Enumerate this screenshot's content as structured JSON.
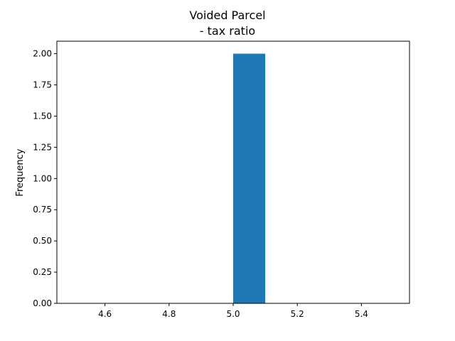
{
  "chart_data": {
    "type": "bar",
    "title_lines": [
      "Voided Parcel",
      "- tax ratio"
    ],
    "xlabel": "",
    "ylabel": "Frequency",
    "bins": [
      {
        "x0": 5.0,
        "x1": 5.1,
        "count": 2
      }
    ],
    "xlim": [
      4.45,
      5.55
    ],
    "ylim": [
      0,
      2.1
    ],
    "xticks": [
      4.6,
      4.8,
      5.0,
      5.2,
      5.4
    ],
    "xtick_labels": [
      "4.6",
      "4.8",
      "5.0",
      "5.2",
      "5.4"
    ],
    "yticks": [
      0,
      0.25,
      0.5,
      0.75,
      1.0,
      1.25,
      1.5,
      1.75,
      2.0
    ],
    "ytick_labels": [
      "0.00",
      "0.25",
      "0.50",
      "0.75",
      "1.00",
      "1.25",
      "1.50",
      "1.75",
      "2.00"
    ],
    "grid": false,
    "bar_color": "#1f77b4"
  }
}
